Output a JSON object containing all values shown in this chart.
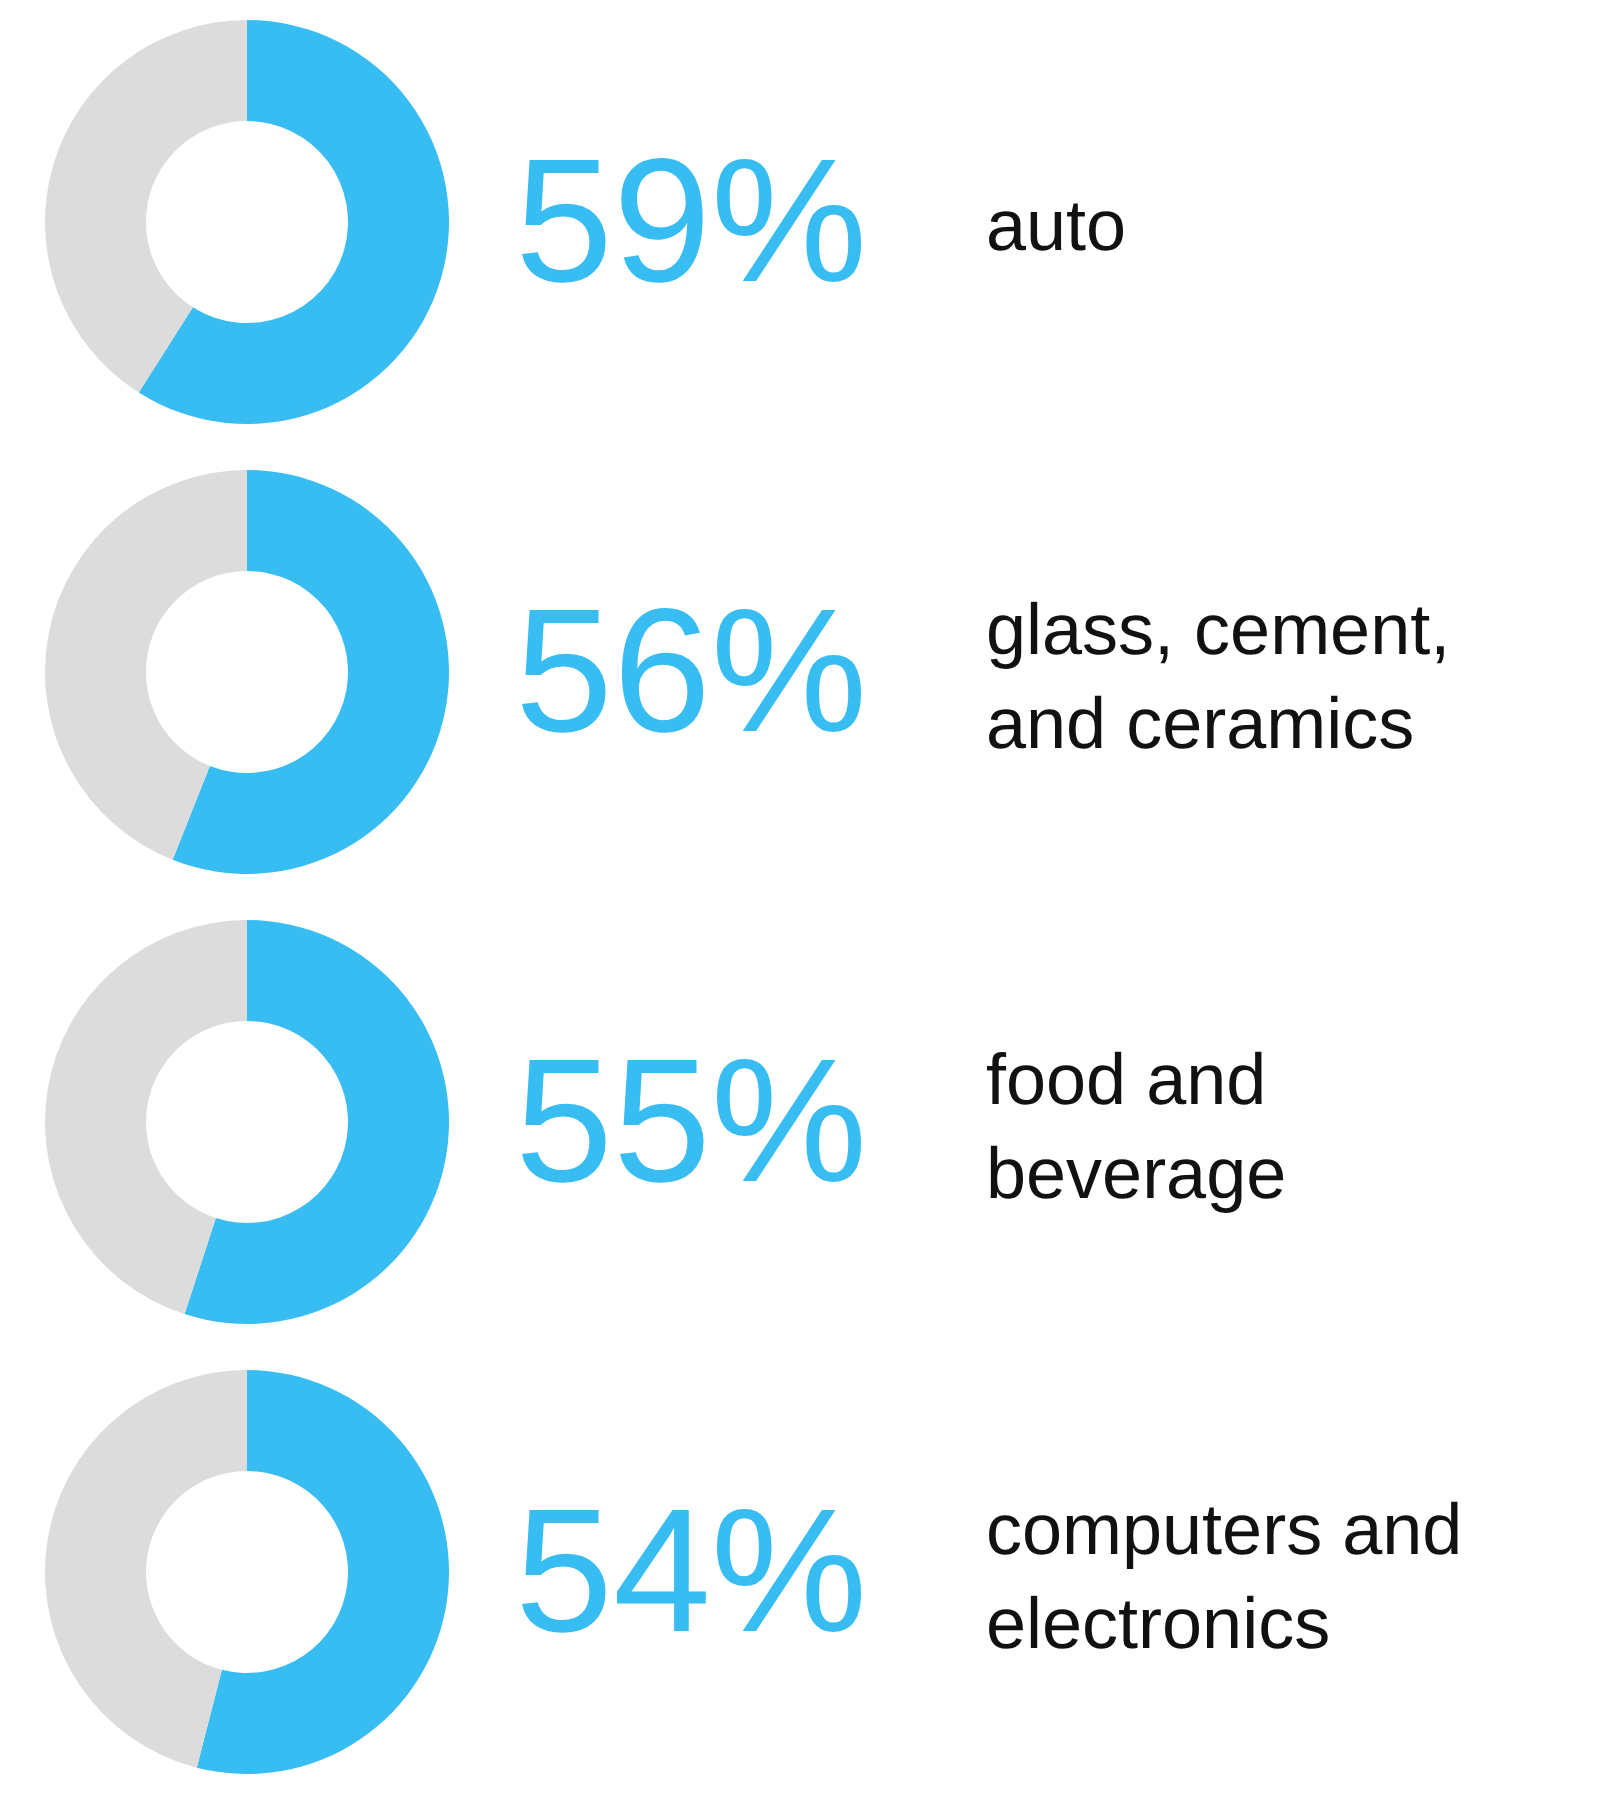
{
  "chart_data": [
    {
      "type": "donut",
      "title": "auto",
      "categories": [
        null,
        null
      ],
      "values": [
        59,
        41
      ],
      "colors": [
        "#38bdf3",
        "#dcdcdc"
      ],
      "value_labels": [
        "59%",
        null
      ],
      "legend": false
    },
    {
      "type": "donut",
      "title": "glass, cement,\nand ceramics",
      "categories": [
        null,
        null
      ],
      "values": [
        56,
        44
      ],
      "colors": [
        "#38bdf3",
        "#dcdcdc"
      ],
      "value_labels": [
        "56%",
        null
      ],
      "legend": false
    },
    {
      "type": "donut",
      "title": "food and\nbeverage",
      "categories": [
        null,
        null
      ],
      "values": [
        55,
        45
      ],
      "colors": [
        "#38bdf3",
        "#dcdcdc"
      ],
      "value_labels": [
        "55%",
        null
      ],
      "legend": false
    },
    {
      "type": "donut",
      "title": "computers and\nelectronics",
      "categories": [
        null,
        null
      ],
      "values": [
        54,
        46
      ],
      "colors": [
        "#38bdf3",
        "#dcdcdc"
      ],
      "value_labels": [
        "54%",
        null
      ],
      "legend": false
    }
  ]
}
